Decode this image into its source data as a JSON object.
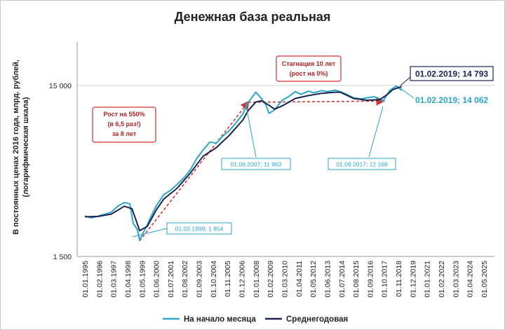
{
  "chart_data": {
    "type": "line",
    "title": "Денежная база реальная",
    "ylabel": "В постоянных ценах 2016 года, млрд. рублей, (логарифмическая шкала)",
    "yscale": "log",
    "ylim": [
      1500,
      30000
    ],
    "yticks": [
      1500,
      15000
    ],
    "ytick_labels": [
      "1 500",
      "15 000"
    ],
    "x_ticks": [
      "01.01.1995",
      "01.02.1996",
      "01.03.1997",
      "01.04.1998",
      "01.05.1999",
      "01.06.2000",
      "01.07.2001",
      "01.08.2002",
      "01.09.2003",
      "01.10.2004",
      "01.11.2005",
      "01.12.2006",
      "01.01.2008",
      "01.02.2009",
      "01.03.2010",
      "01.04.2011",
      "01.05.2012",
      "01.06.2013",
      "01.07.2014",
      "01.08.2015",
      "01.09.2016",
      "01.10.2017",
      "01.11.2018",
      "01.12.2019",
      "01.01.2021",
      "01.02.2022",
      "01.03.2023",
      "01.04.2024",
      "01.05.2025"
    ],
    "grid": false,
    "legend_position": "bottom",
    "series": [
      {
        "name": "На начало месяца",
        "color": "#2aa6c8",
        "points": [
          [
            "1995-01",
            2580
          ],
          [
            "1995-07",
            2520
          ],
          [
            "1996-01",
            2580
          ],
          [
            "1996-07",
            2650
          ],
          [
            "1997-01",
            2720
          ],
          [
            "1997-07",
            2950
          ],
          [
            "1998-01",
            3100
          ],
          [
            "1998-06",
            3050
          ],
          [
            "1998-09",
            2350
          ],
          [
            "1999-01",
            2150
          ],
          [
            "1999-03",
            1854
          ],
          [
            "1999-06",
            2050
          ],
          [
            "1999-10",
            2300
          ],
          [
            "2000-01",
            2550
          ],
          [
            "2000-06",
            2950
          ],
          [
            "2001-01",
            3450
          ],
          [
            "2001-07",
            3650
          ],
          [
            "2002-01",
            3950
          ],
          [
            "2002-07",
            4300
          ],
          [
            "2003-01",
            4800
          ],
          [
            "2003-07",
            5600
          ],
          [
            "2004-01",
            6300
          ],
          [
            "2004-07",
            7000
          ],
          [
            "2005-01",
            6900
          ],
          [
            "2005-07",
            7600
          ],
          [
            "2006-01",
            8200
          ],
          [
            "2006-07",
            9100
          ],
          [
            "2007-01",
            10200
          ],
          [
            "2007-06",
            11963
          ],
          [
            "2008-01",
            13700
          ],
          [
            "2008-06",
            12600
          ],
          [
            "2008-10",
            11600
          ],
          [
            "2009-01",
            10300
          ],
          [
            "2009-06",
            10800
          ],
          [
            "2010-01",
            12300
          ],
          [
            "2010-06",
            12800
          ],
          [
            "2011-01",
            13800
          ],
          [
            "2011-06",
            13300
          ],
          [
            "2012-01",
            13900
          ],
          [
            "2012-06",
            13600
          ],
          [
            "2013-01",
            14000
          ],
          [
            "2013-06",
            13800
          ],
          [
            "2014-01",
            14100
          ],
          [
            "2014-06",
            13800
          ],
          [
            "2014-12",
            13300
          ],
          [
            "2015-06",
            12700
          ],
          [
            "2016-01",
            12500
          ],
          [
            "2016-06",
            12700
          ],
          [
            "2017-01",
            12900
          ],
          [
            "2017-09",
            12168
          ],
          [
            "2018-03",
            14000
          ],
          [
            "2018-09",
            14900
          ],
          [
            "2019-02",
            14062
          ]
        ]
      },
      {
        "name": "Среднегодовая",
        "color": "#1a2350",
        "points": [
          [
            "1995-01",
            2560
          ],
          [
            "1996-01",
            2570
          ],
          [
            "1997-01",
            2650
          ],
          [
            "1998-01",
            2950
          ],
          [
            "1998-08",
            2850
          ],
          [
            "1999-03",
            2120
          ],
          [
            "1999-10",
            2250
          ],
          [
            "2000-06",
            2800
          ],
          [
            "2001-01",
            3250
          ],
          [
            "2002-01",
            3750
          ],
          [
            "2003-01",
            4600
          ],
          [
            "2004-01",
            5800
          ],
          [
            "2005-01",
            6500
          ],
          [
            "2006-01",
            7700
          ],
          [
            "2007-01",
            9400
          ],
          [
            "2007-06",
            10700
          ],
          [
            "2008-01",
            12000
          ],
          [
            "2008-06",
            12200
          ],
          [
            "2009-01",
            11500
          ],
          [
            "2009-06",
            10900
          ],
          [
            "2010-01",
            11400
          ],
          [
            "2011-01",
            12600
          ],
          [
            "2012-01",
            13100
          ],
          [
            "2013-01",
            13500
          ],
          [
            "2014-01",
            13700
          ],
          [
            "2014-06",
            13700
          ],
          [
            "2015-06",
            12600
          ],
          [
            "2016-06",
            12300
          ],
          [
            "2017-06",
            12400
          ],
          [
            "2018-01",
            13300
          ],
          [
            "2018-06",
            14200
          ],
          [
            "2019-02",
            14793
          ]
        ]
      }
    ],
    "annotations": [
      {
        "id": "growth",
        "text": [
          "Рост на 550%",
          "(в 6,5 раз!)",
          "за 8 лет"
        ],
        "color": "#b22222"
      },
      {
        "id": "stagnation",
        "text": [
          "Стагнация 10 лет",
          "(рост на 0%)"
        ],
        "color": "#b22222"
      },
      {
        "id": "point-1999",
        "text": "01.03.1999;  1 854",
        "color": "#2aa6c8"
      },
      {
        "id": "point-2007",
        "text": "01.06.2007;  11 963",
        "color": "#2aa6c8"
      },
      {
        "id": "point-2017",
        "text": "01.09.2017;  12 168",
        "color": "#2aa6c8"
      },
      {
        "id": "point-2019-avg",
        "text": "01.02.2019;  14 793",
        "color": "#1a2350"
      },
      {
        "id": "point-2019-month",
        "text": "01.02.2019;  14 062",
        "color": "#2aa6c8"
      }
    ]
  }
}
